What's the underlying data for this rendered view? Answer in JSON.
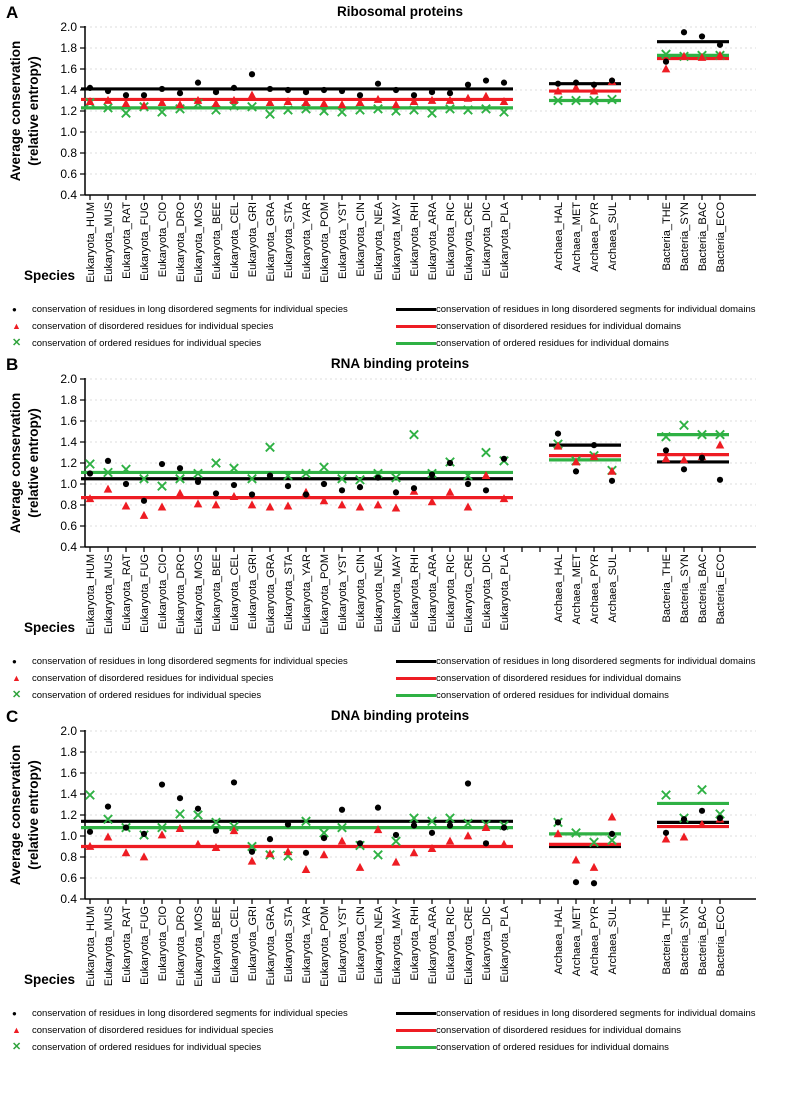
{
  "figure": {
    "y_axis_label_line1": "Average conservation",
    "y_axis_label_line2": "(relative entropy)",
    "x_axis_title": "Species",
    "y_tick_labels": [
      "2.0",
      "1.8",
      "1.6",
      "1.4",
      "1.2",
      "1.0",
      "0.8",
      "0.6",
      "0.4"
    ],
    "ylim": [
      0.4,
      2.0
    ],
    "colors": {
      "black": "#000000",
      "red": "#ee1c23",
      "green": "#2fb144",
      "grid": "#dcdcdc"
    }
  },
  "species": [
    "Eukaryota_HUM",
    "Eukaryota_MUS",
    "Eukaryota_RAT",
    "Eukaryota_FUG",
    "Eukaryota_CIO",
    "Eukaryota_DRO",
    "Eukaryota_MOS",
    "Eukaryota_BEE",
    "Eukaryota_CEL",
    "Eukaryota_GRI",
    "Eukaryota_GRA",
    "Eukaryota_STA",
    "Eukaryota_YAR",
    "Eukaryota_POM",
    "Eukaryota_YST",
    "Eukaryota_CIN",
    "Eukaryota_NEA",
    "Eukaryota_MAY",
    "Eukaryota_RHI",
    "Eukaryota_ARA",
    "Eukaryota_RIC",
    "Eukaryota_CRE",
    "Eukaryota_DIC",
    "Eukaryota_PLA",
    "Archaea_HAL",
    "Archaea_MET",
    "Archaea_PYR",
    "Archaea_SUL",
    "Bacteria_THE",
    "Bacteria_SYN",
    "Bacteria_BAC",
    "Bacteria_ECO"
  ],
  "groups": [
    {
      "name": "Eukaryota",
      "first_index": 0,
      "last_index": 23,
      "slot_start": 0
    },
    {
      "name": "Archaea",
      "first_index": 24,
      "last_index": 27,
      "slot_start": 26
    },
    {
      "name": "Bacteria",
      "first_index": 28,
      "last_index": 31,
      "slot_start": 32
    }
  ],
  "legend": {
    "glyphs": {
      "dot": "●",
      "triangle": "▲",
      "x": "✕"
    },
    "species_items": [
      {
        "marker": "dot",
        "color": "#000000",
        "label": "conservation of residues in long disordered segments for individual species"
      },
      {
        "marker": "triangle",
        "color": "#ee1c23",
        "label": "conservation of disordered residues for individual species"
      },
      {
        "marker": "x",
        "color": "#2fb144",
        "label": "conservation of ordered residues for individual species"
      }
    ],
    "domain_items": [
      {
        "line_color": "#000000",
        "label": "conservation of residues in long disordered segments for individual domains"
      },
      {
        "line_color": "#ee1c23",
        "label": "conservation of disordered residues for individual domains"
      },
      {
        "line_color": "#2fb144",
        "label": "conservation of ordered residues for individual domains"
      }
    ]
  },
  "chart_data": [
    {
      "type": "scatter",
      "panel_letter": "A",
      "title": "Ribosomal proteins",
      "ylabel": "Average conservation (relative entropy)",
      "xlabel": "Species",
      "ylim": [
        0.4,
        2.0
      ],
      "grid": "horizontal-dashed",
      "series": [
        {
          "name": "long disordered segments, individual species",
          "marker": "dot",
          "color": "#000000",
          "values": [
            1.42,
            1.39,
            1.35,
            1.35,
            1.41,
            1.37,
            1.47,
            1.38,
            1.42,
            1.55,
            1.41,
            1.4,
            1.38,
            1.4,
            1.39,
            1.35,
            1.46,
            1.4,
            1.35,
            1.38,
            1.37,
            1.45,
            1.49,
            1.47,
            1.46,
            1.47,
            1.45,
            1.49,
            1.67,
            1.95,
            1.91,
            1.83
          ]
        },
        {
          "name": "disordered residues, individual species",
          "marker": "triangle",
          "color": "#ee1c23",
          "values": [
            1.29,
            1.3,
            1.27,
            1.25,
            1.28,
            1.26,
            1.3,
            1.27,
            1.3,
            1.35,
            1.28,
            1.29,
            1.28,
            1.27,
            1.26,
            1.28,
            1.31,
            1.26,
            1.29,
            1.3,
            1.3,
            1.32,
            1.34,
            1.29,
            1.39,
            1.42,
            1.39,
            1.48,
            1.6,
            1.72,
            1.71,
            1.73
          ]
        },
        {
          "name": "ordered residues, individual species",
          "marker": "x",
          "color": "#2fb144",
          "values": [
            1.28,
            1.23,
            1.18,
            1.24,
            1.19,
            1.22,
            1.27,
            1.21,
            1.25,
            1.24,
            1.17,
            1.21,
            1.22,
            1.2,
            1.19,
            1.21,
            1.22,
            1.2,
            1.21,
            1.18,
            1.22,
            1.21,
            1.22,
            1.19,
            1.3,
            1.3,
            1.3,
            1.31,
            1.74,
            1.72,
            1.73,
            1.73
          ]
        }
      ],
      "domain_lines": [
        {
          "name": "long disordered segments, individual domains",
          "color": "#000000",
          "group_values": {
            "Eukaryota": 1.41,
            "Archaea": 1.46,
            "Bacteria": 1.86
          }
        },
        {
          "name": "disordered residues, individual domains",
          "color": "#ee1c23",
          "group_values": {
            "Eukaryota": 1.31,
            "Archaea": 1.39,
            "Bacteria": 1.7
          }
        },
        {
          "name": "ordered residues, individual domains",
          "color": "#2fb144",
          "group_values": {
            "Eukaryota": 1.23,
            "Archaea": 1.3,
            "Bacteria": 1.73
          }
        }
      ]
    },
    {
      "type": "scatter",
      "panel_letter": "B",
      "title": "RNA binding proteins",
      "ylabel": "Average conservation (relative entropy)",
      "xlabel": "Species",
      "ylim": [
        0.4,
        2.0
      ],
      "grid": "horizontal-dashed",
      "series": [
        {
          "name": "long disordered segments, individual species",
          "marker": "dot",
          "color": "#000000",
          "values": [
            1.1,
            1.22,
            1.0,
            0.84,
            1.19,
            1.15,
            1.02,
            0.91,
            0.99,
            0.9,
            1.08,
            0.98,
            0.9,
            1.0,
            0.94,
            0.97,
            1.06,
            0.92,
            0.96,
            1.09,
            1.2,
            1.0,
            0.94,
            1.24,
            1.48,
            1.12,
            1.37,
            1.03,
            1.32,
            1.14,
            1.25,
            1.04
          ]
        },
        {
          "name": "disordered residues, individual species",
          "marker": "triangle",
          "color": "#ee1c23",
          "values": [
            0.86,
            0.95,
            0.79,
            0.7,
            0.78,
            0.91,
            0.81,
            0.8,
            0.88,
            0.8,
            0.78,
            0.79,
            0.92,
            0.84,
            0.8,
            0.78,
            0.8,
            0.77,
            0.93,
            0.83,
            0.92,
            0.78,
            1.08,
            0.86,
            1.36,
            1.21,
            1.26,
            1.12,
            1.24,
            1.23,
            1.26,
            1.37
          ]
        },
        {
          "name": "ordered residues, individual species",
          "marker": "x",
          "color": "#2fb144",
          "values": [
            1.19,
            1.11,
            1.14,
            1.05,
            0.98,
            1.05,
            1.1,
            1.2,
            1.15,
            1.05,
            1.35,
            1.08,
            1.1,
            1.16,
            1.05,
            1.04,
            1.1,
            1.06,
            1.47,
            1.1,
            1.21,
            1.08,
            1.3,
            1.22,
            1.38,
            1.22,
            1.27,
            1.13,
            1.45,
            1.56,
            1.47,
            1.47
          ]
        }
      ],
      "domain_lines": [
        {
          "name": "long disordered segments, individual domains",
          "color": "#000000",
          "group_values": {
            "Eukaryota": 1.05,
            "Archaea": 1.37,
            "Bacteria": 1.21
          }
        },
        {
          "name": "disordered residues, individual domains",
          "color": "#ee1c23",
          "group_values": {
            "Eukaryota": 0.87,
            "Archaea": 1.27,
            "Bacteria": 1.28
          }
        },
        {
          "name": "ordered residues, individual domains",
          "color": "#2fb144",
          "group_values": {
            "Eukaryota": 1.11,
            "Archaea": 1.23,
            "Bacteria": 1.47
          }
        }
      ]
    },
    {
      "type": "scatter",
      "panel_letter": "C",
      "title": "DNA binding proteins",
      "ylabel": "Average conservation (relative entropy)",
      "xlabel": "Species",
      "ylim": [
        0.4,
        2.0
      ],
      "grid": "horizontal-dashed",
      "series": [
        {
          "name": "long disordered segments, individual species",
          "marker": "dot",
          "color": "#000000",
          "values": [
            1.04,
            1.28,
            1.08,
            1.02,
            1.49,
            1.36,
            1.26,
            1.05,
            1.51,
            0.85,
            0.97,
            1.11,
            0.84,
            0.98,
            1.25,
            0.93,
            1.27,
            1.01,
            1.1,
            1.03,
            1.1,
            1.5,
            0.93,
            1.08,
            1.13,
            0.56,
            0.55,
            1.02,
            1.03,
            1.16,
            1.24,
            1.17
          ]
        },
        {
          "name": "disordered residues, individual species",
          "marker": "triangle",
          "color": "#ee1c23",
          "values": [
            0.9,
            0.99,
            0.84,
            0.8,
            1.01,
            1.07,
            0.92,
            0.89,
            1.05,
            0.76,
            0.83,
            0.85,
            0.68,
            0.82,
            0.95,
            0.7,
            1.06,
            0.75,
            0.84,
            0.88,
            0.95,
            1.0,
            1.08,
            0.92,
            1.02,
            0.77,
            0.7,
            1.18,
            0.97,
            0.99,
            1.11,
            1.16
          ]
        },
        {
          "name": "ordered residues, individual species",
          "marker": "x",
          "color": "#2fb144",
          "values": [
            1.39,
            1.16,
            1.08,
            1.01,
            1.08,
            1.21,
            1.2,
            1.13,
            1.09,
            0.9,
            0.82,
            0.81,
            1.14,
            1.03,
            1.08,
            0.91,
            0.82,
            0.95,
            1.17,
            1.14,
            1.17,
            1.12,
            1.11,
            1.1,
            1.13,
            1.03,
            0.94,
            0.96,
            1.39,
            1.17,
            1.44,
            1.21
          ]
        }
      ],
      "domain_lines": [
        {
          "name": "long disordered segments, individual domains",
          "color": "#000000",
          "group_values": {
            "Eukaryota": 1.14,
            "Archaea": 0.9,
            "Bacteria": 1.13
          }
        },
        {
          "name": "disordered residues, individual domains",
          "color": "#ee1c23",
          "group_values": {
            "Eukaryota": 0.9,
            "Archaea": 0.92,
            "Bacteria": 1.09
          }
        },
        {
          "name": "ordered residues, individual domains",
          "color": "#2fb144",
          "group_values": {
            "Eukaryota": 1.08,
            "Archaea": 1.02,
            "Bacteria": 1.31
          }
        }
      ]
    }
  ]
}
